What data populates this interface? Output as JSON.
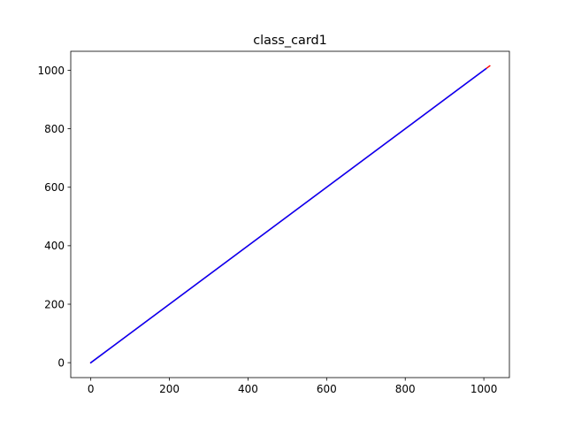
{
  "chart_data": {
    "type": "line",
    "title": "class_card1",
    "xlabel": "",
    "ylabel": "",
    "xlim": [
      -51,
      1065
    ],
    "ylim": [
      -51,
      1065
    ],
    "xticks": [
      0,
      200,
      400,
      600,
      800,
      1000
    ],
    "yticks": [
      0,
      200,
      400,
      600,
      800,
      1000
    ],
    "grid": false,
    "legend": "none",
    "series": [
      {
        "color": "#ff0000",
        "x": [
          0,
          1015
        ],
        "y": [
          0,
          1015
        ]
      },
      {
        "color": "#0000ff",
        "x": [
          0,
          1005
        ],
        "y": [
          0,
          1005
        ]
      }
    ]
  }
}
